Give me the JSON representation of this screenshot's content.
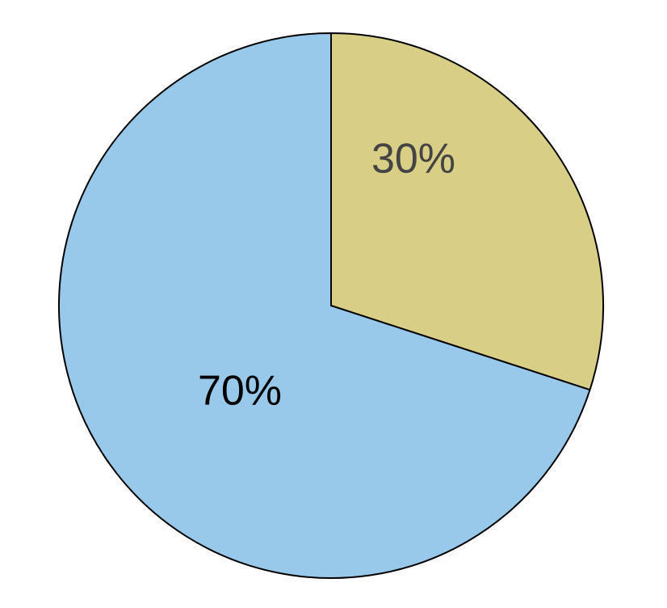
{
  "chart_data": {
    "type": "pie",
    "values": [
      30,
      70
    ],
    "value_labels": [
      "30%",
      "70%"
    ],
    "colors": [
      "#d8ce85",
      "#99c9ea"
    ],
    "label_colors": [
      "#444444",
      "#000000"
    ]
  }
}
